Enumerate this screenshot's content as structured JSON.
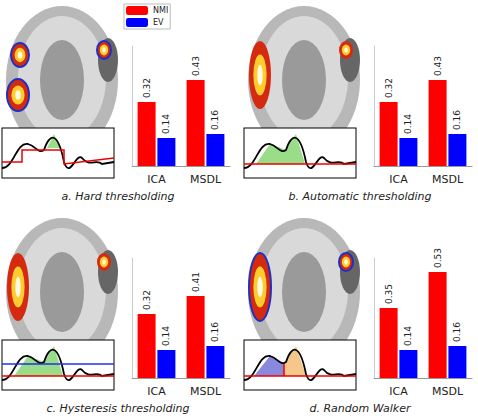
{
  "chart_data": [
    {
      "type": "bar",
      "title": "a. Hard thresholding",
      "categories": [
        "ICA",
        "MSDL"
      ],
      "series": [
        {
          "name": "NMI",
          "color": "#ff0000",
          "values": [
            0.32,
            0.43
          ]
        },
        {
          "name": "EV",
          "color": "#0000ff",
          "values": [
            0.14,
            0.16
          ]
        }
      ],
      "ylim": [
        0,
        0.6
      ],
      "data_labels": true,
      "tick_labels": "x",
      "legend": "upper left"
    },
    {
      "type": "bar",
      "title": "b. Automatic thresholding",
      "categories": [
        "ICA",
        "MSDL"
      ],
      "series": [
        {
          "name": "NMI",
          "color": "#ff0000",
          "values": [
            0.32,
            0.43
          ]
        },
        {
          "name": "EV",
          "color": "#0000ff",
          "values": [
            0.14,
            0.16
          ]
        }
      ],
      "ylim": [
        0,
        0.6
      ],
      "data_labels": true,
      "tick_labels": "x"
    },
    {
      "type": "bar",
      "title": "c. Hysteresis thresholding",
      "categories": [
        "ICA",
        "MSDL"
      ],
      "series": [
        {
          "name": "NMI",
          "color": "#ff0000",
          "values": [
            0.32,
            0.41
          ]
        },
        {
          "name": "EV",
          "color": "#0000ff",
          "values": [
            0.14,
            0.16
          ]
        }
      ],
      "ylim": [
        0,
        0.6
      ],
      "data_labels": true,
      "tick_labels": "x"
    },
    {
      "type": "bar",
      "title": "d. Random Walker",
      "categories": [
        "ICA",
        "MSDL"
      ],
      "series": [
        {
          "name": "NMI",
          "color": "#ff0000",
          "values": [
            0.35,
            0.53
          ]
        },
        {
          "name": "EV",
          "color": "#0000ff",
          "values": [
            0.14,
            0.16
          ]
        }
      ],
      "ylim": [
        0,
        0.6
      ],
      "data_labels": true,
      "tick_labels": "x"
    }
  ]
}
